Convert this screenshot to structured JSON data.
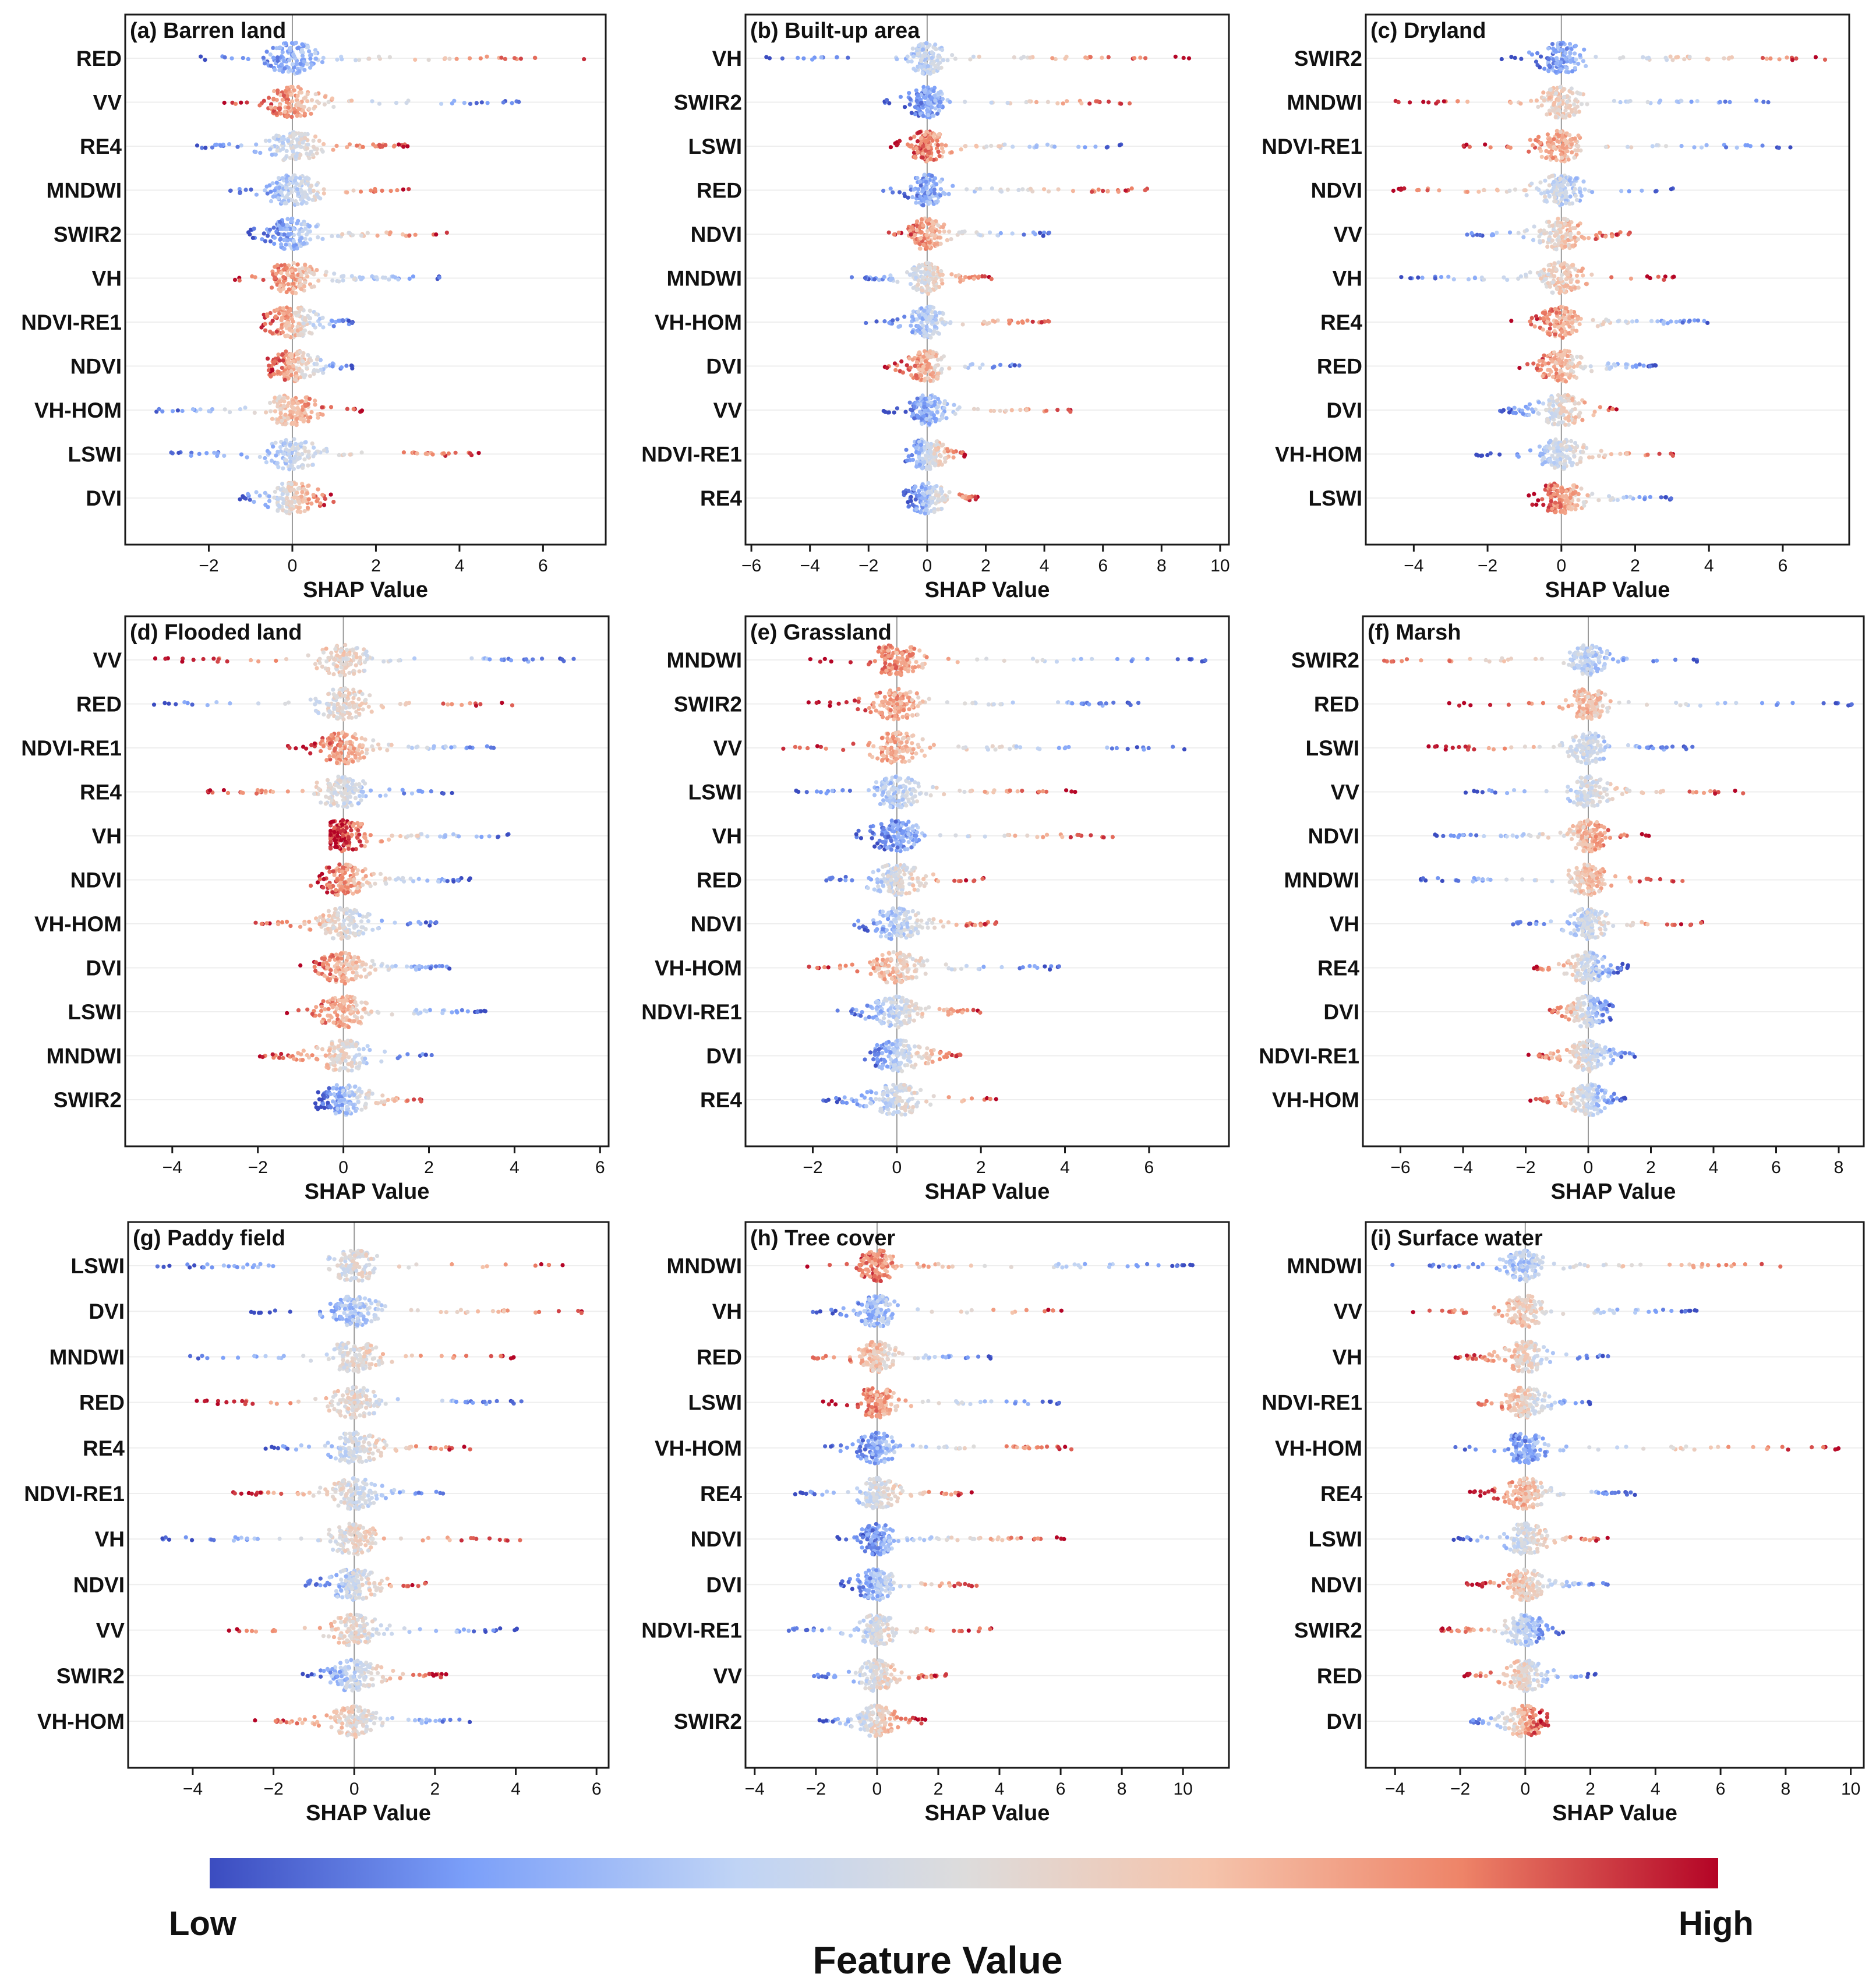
{
  "legend": {
    "low": "Low",
    "high": "High",
    "title": "Feature Value",
    "colors": [
      "#3b4cc0",
      "#7b9ff9",
      "#c0d4f5",
      "#dddcdc",
      "#f5c4ac",
      "#ee8468",
      "#b40426"
    ]
  },
  "chart_data": [
    {
      "id": "a",
      "type": "scatter",
      "title": "(a) Barren land",
      "xlabel": "SHAP Value",
      "xlim": [
        -4,
        7.5
      ],
      "xticks": [
        -2,
        0,
        2,
        4,
        6
      ],
      "features": [
        "RED",
        "VV",
        "RE4",
        "MNDWI",
        "SWIR2",
        "VH",
        "NDVI-RE1",
        "NDVI",
        "VH-HOM",
        "LSWI",
        "DVI"
      ],
      "distributions": [
        {
          "min": -2.2,
          "max": 7.0,
          "low_side": "left"
        },
        {
          "min": -1.8,
          "max": 5.5,
          "low_side": "right"
        },
        {
          "min": -2.3,
          "max": 2.9,
          "low_side": "left"
        },
        {
          "min": -1.5,
          "max": 2.8,
          "low_side": "left"
        },
        {
          "min": -1.2,
          "max": 3.7,
          "low_side": "left"
        },
        {
          "min": -1.4,
          "max": 3.7,
          "low_side": "right"
        },
        {
          "min": -0.8,
          "max": 1.5,
          "low_side": "right"
        },
        {
          "min": -0.6,
          "max": 1.5,
          "low_side": "right"
        },
        {
          "min": -3.4,
          "max": 1.7,
          "low_side": "left"
        },
        {
          "min": -2.9,
          "max": 4.7,
          "low_side": "left"
        },
        {
          "min": -1.3,
          "max": 1.0,
          "low_side": "left"
        }
      ]
    },
    {
      "id": "b",
      "type": "scatter",
      "title": "(b) Built-up area",
      "xlabel": "SHAP Value",
      "xlim": [
        -6.2,
        10.3
      ],
      "xticks": [
        -6,
        -4,
        -2,
        0,
        2,
        4,
        6,
        8,
        10
      ],
      "features": [
        "VH",
        "SWIR2",
        "LSWI",
        "RED",
        "NDVI",
        "MNDWI",
        "VH-HOM",
        "DVI",
        "VV",
        "NDVI-RE1",
        "RE4"
      ],
      "distributions": [
        {
          "min": -5.5,
          "max": 9.5,
          "low_side": "left"
        },
        {
          "min": -1.5,
          "max": 7.0,
          "low_side": "left"
        },
        {
          "min": -1.5,
          "max": 6.7,
          "low_side": "right"
        },
        {
          "min": -2.0,
          "max": 7.6,
          "low_side": "left"
        },
        {
          "min": -1.5,
          "max": 4.2,
          "low_side": "right"
        },
        {
          "min": -2.7,
          "max": 2.5,
          "low_side": "left"
        },
        {
          "min": -2.2,
          "max": 4.4,
          "low_side": "left"
        },
        {
          "min": -1.5,
          "max": 3.3,
          "low_side": "right"
        },
        {
          "min": -1.6,
          "max": 5.1,
          "low_side": "left"
        },
        {
          "min": -0.8,
          "max": 1.3,
          "low_side": "left"
        },
        {
          "min": -0.8,
          "max": 1.8,
          "low_side": "left"
        }
      ]
    },
    {
      "id": "c",
      "type": "scatter",
      "title": "(c) Dryland",
      "xlabel": "SHAP Value",
      "xlim": [
        -5.3,
        7.8
      ],
      "xticks": [
        -4,
        -2,
        0,
        2,
        4,
        6
      ],
      "features": [
        "SWIR2",
        "MNDWI",
        "NDVI-RE1",
        "NDVI",
        "VV",
        "VH",
        "RE4",
        "RED",
        "DVI",
        "VH-HOM",
        "LSWI"
      ],
      "distributions": [
        {
          "min": -1.8,
          "max": 7.2,
          "low_side": "left"
        },
        {
          "min": -4.5,
          "max": 6.0,
          "low_side": "right"
        },
        {
          "min": -2.7,
          "max": 6.3,
          "low_side": "right"
        },
        {
          "min": -4.8,
          "max": 3.1,
          "low_side": "right"
        },
        {
          "min": -2.8,
          "max": 1.9,
          "low_side": "left"
        },
        {
          "min": -4.6,
          "max": 3.1,
          "low_side": "left"
        },
        {
          "min": -1.5,
          "max": 4.3,
          "low_side": "right"
        },
        {
          "min": -1.2,
          "max": 2.7,
          "low_side": "right"
        },
        {
          "min": -1.7,
          "max": 1.6,
          "low_side": "left"
        },
        {
          "min": -2.4,
          "max": 3.2,
          "low_side": "left"
        },
        {
          "min": -0.9,
          "max": 3.0,
          "low_side": "right"
        }
      ]
    },
    {
      "id": "d",
      "type": "scatter",
      "title": "(d) Flooded land",
      "xlabel": "SHAP Value",
      "xlim": [
        -5.1,
        6.2
      ],
      "xticks": [
        -4,
        -2,
        0,
        2,
        4,
        6
      ],
      "features": [
        "VV",
        "RED",
        "NDVI-RE1",
        "RE4",
        "VH",
        "NDVI",
        "VH-HOM",
        "DVI",
        "LSWI",
        "MNDWI",
        "SWIR2"
      ],
      "distributions": [
        {
          "min": -4.4,
          "max": 5.7,
          "low_side": "right"
        },
        {
          "min": -4.6,
          "max": 4.0,
          "low_side": "left"
        },
        {
          "min": -1.3,
          "max": 3.7,
          "low_side": "right"
        },
        {
          "min": -3.2,
          "max": 2.6,
          "low_side": "right"
        },
        {
          "min": -0.3,
          "max": 3.9,
          "low_side": "right"
        },
        {
          "min": -0.8,
          "max": 3.0,
          "low_side": "right"
        },
        {
          "min": -2.2,
          "max": 2.2,
          "low_side": "right"
        },
        {
          "min": -1.1,
          "max": 2.7,
          "low_side": "right"
        },
        {
          "min": -1.4,
          "max": 3.5,
          "low_side": "right"
        },
        {
          "min": -2.0,
          "max": 2.2,
          "low_side": "right"
        },
        {
          "min": -0.7,
          "max": 1.9,
          "low_side": "left"
        }
      ]
    },
    {
      "id": "e",
      "type": "scatter",
      "title": "(e) Grassland",
      "xlabel": "SHAP Value",
      "xlim": [
        -3.6,
        7.9
      ],
      "xticks": [
        -2,
        0,
        2,
        4,
        6
      ],
      "features": [
        "MNDWI",
        "SWIR2",
        "VV",
        "LSWI",
        "VH",
        "RED",
        "NDVI",
        "VH-HOM",
        "NDVI-RE1",
        "DVI",
        "RE4"
      ],
      "distributions": [
        {
          "min": -2.1,
          "max": 7.4,
          "low_side": "right"
        },
        {
          "min": -2.1,
          "max": 6.0,
          "low_side": "right"
        },
        {
          "min": -2.9,
          "max": 6.9,
          "low_side": "right"
        },
        {
          "min": -2.4,
          "max": 4.5,
          "low_side": "left"
        },
        {
          "min": -1.0,
          "max": 5.2,
          "low_side": "left"
        },
        {
          "min": -1.8,
          "max": 2.1,
          "low_side": "left"
        },
        {
          "min": -1.2,
          "max": 2.4,
          "low_side": "left"
        },
        {
          "min": -2.3,
          "max": 3.9,
          "low_side": "right"
        },
        {
          "min": -1.5,
          "max": 2.2,
          "low_side": "left"
        },
        {
          "min": -0.8,
          "max": 1.6,
          "low_side": "left"
        },
        {
          "min": -1.8,
          "max": 2.5,
          "low_side": "left"
        }
      ]
    },
    {
      "id": "f",
      "type": "scatter",
      "title": "(f) Marsh",
      "xlabel": "SHAP Value",
      "xlim": [
        -7.2,
        8.8
      ],
      "xticks": [
        -6,
        -4,
        -2,
        0,
        2,
        4,
        6,
        8
      ],
      "features": [
        "SWIR2",
        "RED",
        "LSWI",
        "VV",
        "NDVI",
        "MNDWI",
        "VH",
        "RE4",
        "DVI",
        "NDVI-RE1",
        "VH-HOM"
      ],
      "distributions": [
        {
          "min": -6.7,
          "max": 3.8,
          "low_side": "right"
        },
        {
          "min": -4.5,
          "max": 8.5,
          "low_side": "right"
        },
        {
          "min": -5.1,
          "max": 3.6,
          "low_side": "right"
        },
        {
          "min": -4.1,
          "max": 5.0,
          "low_side": "left"
        },
        {
          "min": -4.9,
          "max": 2.2,
          "low_side": "left"
        },
        {
          "min": -5.4,
          "max": 3.1,
          "low_side": "left"
        },
        {
          "min": -2.6,
          "max": 3.7,
          "low_side": "left"
        },
        {
          "min": -1.9,
          "max": 1.3,
          "low_side": "right"
        },
        {
          "min": -1.3,
          "max": 0.8,
          "low_side": "right"
        },
        {
          "min": -2.0,
          "max": 1.7,
          "low_side": "right"
        },
        {
          "min": -1.9,
          "max": 1.3,
          "low_side": "right"
        }
      ]
    },
    {
      "id": "g",
      "type": "scatter",
      "title": "(g) Paddy field",
      "xlabel": "SHAP Value",
      "xlim": [
        -5.6,
        6.3
      ],
      "xticks": [
        -4,
        -2,
        0,
        2,
        4,
        6
      ],
      "features": [
        "LSWI",
        "DVI",
        "MNDWI",
        "RED",
        "RE4",
        "NDVI-RE1",
        "VH",
        "NDVI",
        "VV",
        "SWIR2",
        "VH-HOM"
      ],
      "distributions": [
        {
          "min": -5.0,
          "max": 5.5,
          "low_side": "left"
        },
        {
          "min": -2.7,
          "max": 5.9,
          "low_side": "left"
        },
        {
          "min": -4.1,
          "max": 4.0,
          "low_side": "left"
        },
        {
          "min": -3.9,
          "max": 4.4,
          "low_side": "right"
        },
        {
          "min": -2.3,
          "max": 2.9,
          "low_side": "left"
        },
        {
          "min": -3.0,
          "max": 2.4,
          "low_side": "right"
        },
        {
          "min": -4.8,
          "max": 4.2,
          "low_side": "left"
        },
        {
          "min": -1.3,
          "max": 1.8,
          "low_side": "left"
        },
        {
          "min": -3.5,
          "max": 4.1,
          "low_side": "right"
        },
        {
          "min": -1.4,
          "max": 2.3,
          "low_side": "left"
        },
        {
          "min": -2.6,
          "max": 3.2,
          "low_side": "right"
        }
      ]
    },
    {
      "id": "h",
      "type": "scatter",
      "title": "(h) Tree cover",
      "xlabel": "SHAP Value",
      "xlim": [
        -4.3,
        11.5
      ],
      "xticks": [
        -4,
        -2,
        0,
        2,
        4,
        6,
        8,
        10
      ],
      "features": [
        "MNDWI",
        "VH",
        "RED",
        "LSWI",
        "VH-HOM",
        "RE4",
        "NDVI",
        "DVI",
        "NDVI-RE1",
        "VV",
        "SWIR2"
      ],
      "distributions": [
        {
          "min": -2.5,
          "max": 10.8,
          "low_side": "right"
        },
        {
          "min": -2.2,
          "max": 6.3,
          "low_side": "left"
        },
        {
          "min": -2.2,
          "max": 3.9,
          "low_side": "right"
        },
        {
          "min": -1.8,
          "max": 6.0,
          "low_side": "right"
        },
        {
          "min": -1.7,
          "max": 6.4,
          "low_side": "left"
        },
        {
          "min": -2.8,
          "max": 3.3,
          "low_side": "left"
        },
        {
          "min": -1.3,
          "max": 6.4,
          "low_side": "left"
        },
        {
          "min": -1.2,
          "max": 3.3,
          "low_side": "left"
        },
        {
          "min": -3.1,
          "max": 3.8,
          "low_side": "left"
        },
        {
          "min": -2.3,
          "max": 2.3,
          "low_side": "left"
        },
        {
          "min": -2.0,
          "max": 1.6,
          "low_side": "left"
        }
      ]
    },
    {
      "id": "i",
      "type": "scatter",
      "title": "(i) Surface water",
      "xlabel": "SHAP Value",
      "xlim": [
        -4.9,
        10.4
      ],
      "xticks": [
        -4,
        -2,
        0,
        2,
        4,
        6,
        8,
        10
      ],
      "features": [
        "MNDWI",
        "VV",
        "VH",
        "NDVI-RE1",
        "VH-HOM",
        "RE4",
        "LSWI",
        "NDVI",
        "SWIR2",
        "RED",
        "DVI"
      ],
      "distributions": [
        {
          "min": -4.4,
          "max": 8.6,
          "low_side": "left"
        },
        {
          "min": -3.6,
          "max": 5.6,
          "low_side": "right"
        },
        {
          "min": -2.2,
          "max": 2.7,
          "low_side": "right"
        },
        {
          "min": -1.5,
          "max": 2.1,
          "low_side": "right"
        },
        {
          "min": -2.2,
          "max": 9.7,
          "low_side": "left"
        },
        {
          "min": -1.7,
          "max": 3.4,
          "low_side": "right"
        },
        {
          "min": -2.3,
          "max": 2.7,
          "low_side": "left"
        },
        {
          "min": -1.8,
          "max": 2.7,
          "low_side": "right"
        },
        {
          "min": -2.6,
          "max": 1.2,
          "low_side": "right"
        },
        {
          "min": -2.0,
          "max": 2.2,
          "low_side": "right"
        },
        {
          "min": -1.8,
          "max": 0.7,
          "low_side": "left"
        }
      ]
    }
  ]
}
